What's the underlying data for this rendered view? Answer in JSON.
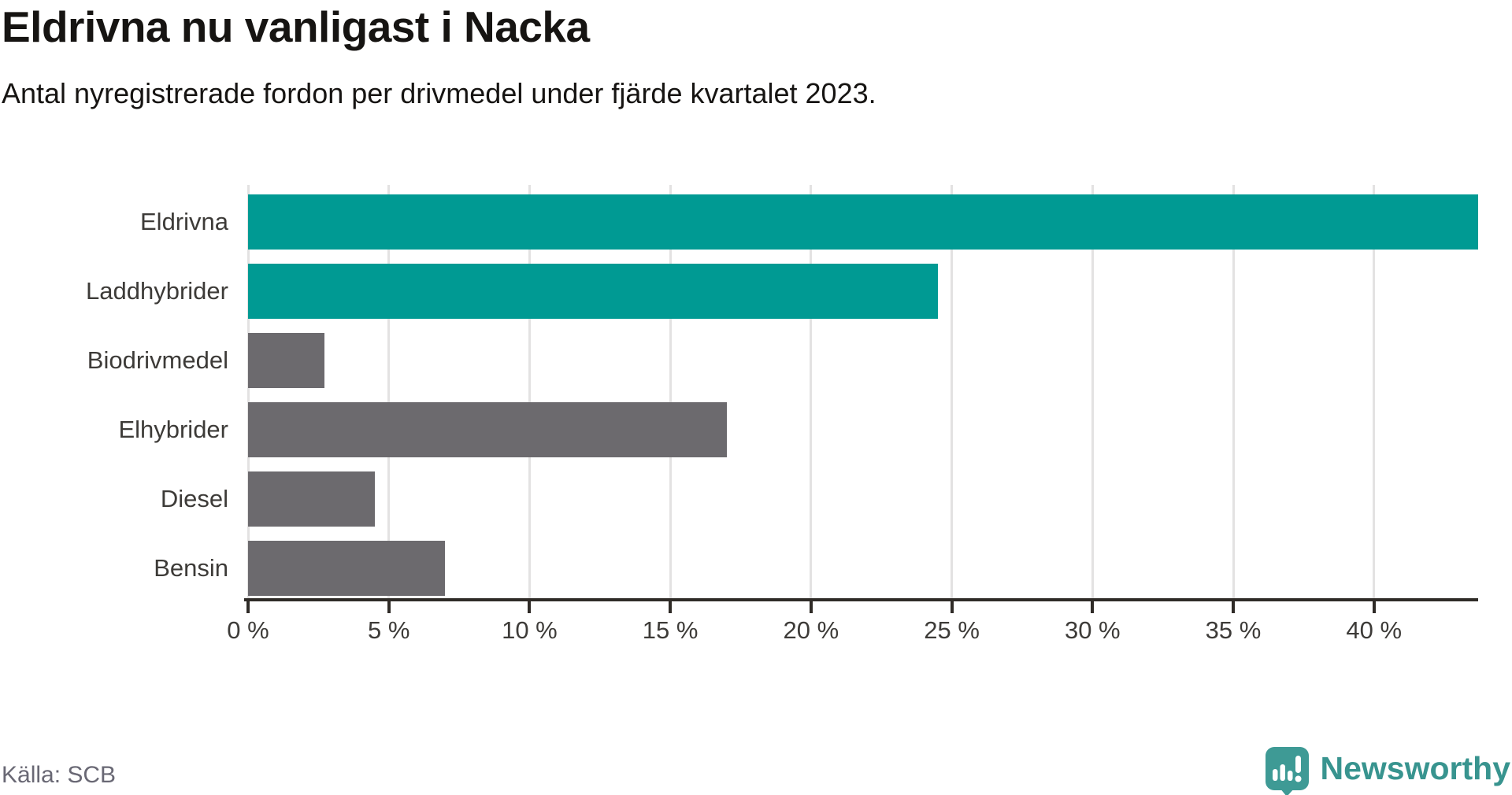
{
  "header": {
    "title": "Eldrivna nu vanligast i Nacka",
    "subtitle": "Antal nyregistrerade fordon per drivmedel under fjärde kvartalet 2023."
  },
  "footer": {
    "source": "Källa: SCB",
    "brand": "Newsworthy"
  },
  "colors": {
    "highlight_teal": "#009a93",
    "base_gray": "#6c6a6e",
    "axis": "#2f2b27",
    "gridline": "#e3e2e2",
    "brand_teal": "#3e9a95"
  },
  "chart_data": {
    "type": "bar",
    "orientation": "horizontal",
    "title": "Eldrivna nu vanligast i Nacka",
    "subtitle": "Antal nyregistrerade fordon per drivmedel under fjärde kvartalet 2023.",
    "categories": [
      "Eldrivna",
      "Laddhybrider",
      "Biodrivmedel",
      "Elhybrider",
      "Diesel",
      "Bensin"
    ],
    "values": [
      43.7,
      24.5,
      2.7,
      17.0,
      4.5,
      7.0
    ],
    "unit": "%",
    "bar_colors": [
      "#009a93",
      "#009a93",
      "#6c6a6e",
      "#6c6a6e",
      "#6c6a6e",
      "#6c6a6e"
    ],
    "xlabel": "",
    "ylabel": "",
    "xlim": [
      0,
      43.7
    ],
    "xticks": [
      0,
      5,
      10,
      15,
      20,
      25,
      30,
      35,
      40
    ],
    "xtick_labels": [
      "0 %",
      "5 %",
      "10 %",
      "15 %",
      "20 %",
      "25 %",
      "30 %",
      "35 %",
      "40 %"
    ],
    "grid": "vertical",
    "legend": "none",
    "source": "Källa: SCB"
  }
}
